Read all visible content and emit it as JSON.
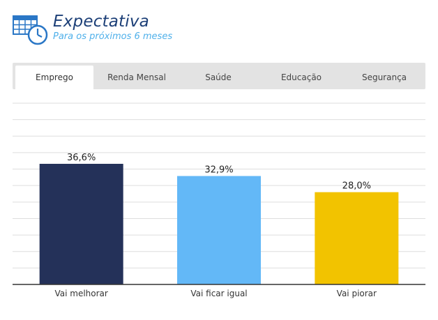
{
  "header": {
    "title": "Expectativa",
    "subtitle": "Para os próximos 6 meses",
    "icon": "calendar-clock-icon"
  },
  "tabs": [
    {
      "label": "Emprego",
      "active": true
    },
    {
      "label": "Renda Mensal",
      "active": false
    },
    {
      "label": "Saúde",
      "active": false
    },
    {
      "label": "Educação",
      "active": false
    },
    {
      "label": "Segurança",
      "active": false
    }
  ],
  "colors": {
    "title": "#1c3f77",
    "subtitle": "#4fb0ea",
    "bar_1": "#243159",
    "bar_2": "#63b8f7",
    "bar_3": "#f2c300"
  },
  "chart_data": {
    "type": "bar",
    "categories": [
      "Vai melhorar",
      "Vai ficar igual",
      "Vai piorar"
    ],
    "values": [
      36.6,
      32.9,
      28.0
    ],
    "data_labels": [
      "36,6%",
      "32,9%",
      "28,0%"
    ],
    "colors": [
      "#243159",
      "#63b8f7",
      "#f2c300"
    ],
    "ylim": [
      0,
      55
    ],
    "grid": true,
    "legend": "none"
  }
}
